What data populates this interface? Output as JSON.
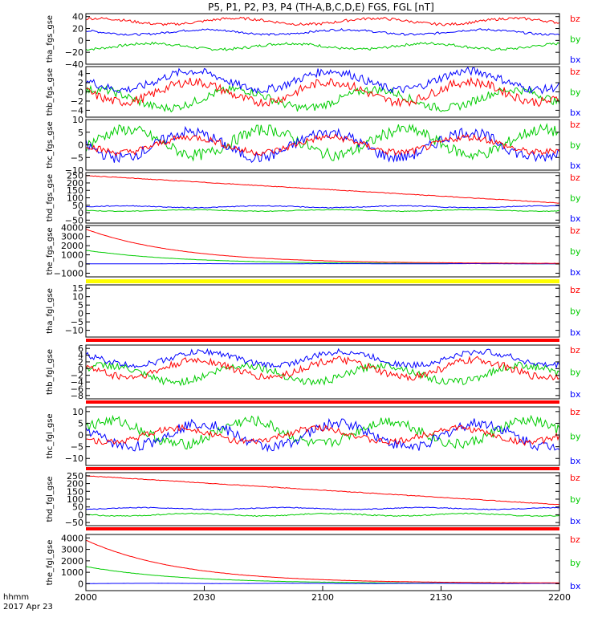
{
  "title": "P5, P1, P2, P3, P4 (TH-A,B,C,D,E) FGS, FGL [nT]",
  "colors": {
    "bz": "#ff0000",
    "by": "#00cc00",
    "bx": "#0000ff",
    "axis": "#000000",
    "flag_yellow": "#ffff00",
    "flag_red": "#ff0000"
  },
  "footer": {
    "xunit": "hhmm",
    "date": "2017 Apr 23"
  },
  "chart_data": {
    "type": "line",
    "x_ticks": [
      "2000",
      "2030",
      "2100",
      "2130",
      "2200"
    ],
    "xlim_minutes": [
      0,
      120
    ],
    "panels": [
      {
        "ylabel": "tha_fgs_gse",
        "ylim": [
          -40,
          45
        ],
        "yticks": [
          "40",
          "20",
          "0",
          "−20",
          "−40"
        ],
        "ytick_values": [
          40,
          20,
          0,
          -20,
          -40
        ],
        "legend": [
          "bz",
          "by",
          "bx"
        ],
        "series": {
          "bz": {
            "base": 32,
            "amp": 5
          },
          "by": {
            "base": -10,
            "amp": 5
          },
          "bx": {
            "base": 14,
            "amp": 4
          }
        }
      },
      {
        "ylabel": "thb_fgs_gse",
        "ylim": [
          -5.5,
          5.5
        ],
        "yticks": [
          "4",
          "2",
          "0",
          "−2",
          "−4"
        ],
        "ytick_values": [
          4,
          2,
          0,
          -2,
          -4
        ],
        "legend": [
          "bz",
          "by",
          "bx"
        ],
        "series": {
          "bz": {
            "base": 0,
            "amp": 2.2
          },
          "by": {
            "base": -1.5,
            "amp": 2
          },
          "bx": {
            "base": 2.5,
            "amp": 2
          }
        }
      },
      {
        "ylabel": "thc_fgs_gse",
        "ylim": [
          -10,
          10
        ],
        "yticks": [
          "10",
          "5",
          "0",
          "−5",
          "−10"
        ],
        "ytick_values": [
          10,
          5,
          0,
          -5,
          -10
        ],
        "legend": [
          "bz",
          "by",
          "bx"
        ],
        "series": {
          "bz": {
            "base": 0,
            "amp": 3
          },
          "by": {
            "base": 1,
            "amp": 5
          },
          "bx": {
            "base": 0,
            "amp": 5
          }
        }
      },
      {
        "ylabel": "thd_fgs_gse",
        "ylim": [
          -70,
          270
        ],
        "yticks": [
          "250",
          "200",
          "150",
          "100",
          "50",
          "0",
          "−50"
        ],
        "ytick_values": [
          250,
          200,
          150,
          100,
          50,
          0,
          -50
        ],
        "legend": [
          "bz",
          "by",
          "bx"
        ],
        "series": {
          "bz": {
            "start": 250,
            "end": 65,
            "mode": "decay"
          },
          "by": {
            "base": 15,
            "amp": 5
          },
          "bx": {
            "base": 40,
            "amp": 6
          }
        }
      },
      {
        "ylabel": "the_fgs_gse",
        "ylim": [
          -1400,
          4200
        ],
        "yticks": [
          "4000",
          "3000",
          "2000",
          "1000",
          "0",
          "−1000"
        ],
        "ytick_values": [
          4000,
          3000,
          2000,
          1000,
          0,
          -1000
        ],
        "legend": [
          "bz",
          "by",
          "bx"
        ],
        "series": {
          "bz": {
            "start": 3800,
            "end": 50,
            "mode": "exp"
          },
          "by": {
            "start": 1500,
            "end": 20,
            "mode": "exp"
          },
          "bx": {
            "base": 30,
            "amp": 10
          }
        }
      },
      {
        "ylabel": "tha_fgl_gse",
        "ylim": [
          -14,
          17
        ],
        "yticks": [
          "15",
          "10",
          "5",
          "0",
          "−5",
          "−10"
        ],
        "ytick_values": [
          15,
          10,
          5,
          0,
          -5,
          -10
        ],
        "legend": [
          "bz",
          "by",
          "bx"
        ],
        "flag_top": "yellow",
        "flag_bottom": "red",
        "empty": true
      },
      {
        "ylabel": "thb_fgl_gse",
        "ylim": [
          -9,
          7
        ],
        "yticks": [
          "6",
          "4",
          "2",
          "0",
          "−2",
          "−4",
          "−6",
          "−8"
        ],
        "ytick_values": [
          6,
          4,
          2,
          0,
          -2,
          -4,
          -6,
          -8
        ],
        "legend": [
          "bz",
          "by",
          "bx"
        ],
        "flag_bottom": "red",
        "series": {
          "bz": {
            "base": 0,
            "amp": 2.5
          },
          "by": {
            "base": -1.5,
            "amp": 2.5
          },
          "bx": {
            "base": 3,
            "amp": 2
          }
        }
      },
      {
        "ylabel": "thc_fgl_gse",
        "ylim": [
          -13,
          12
        ],
        "yticks": [
          "10",
          "5",
          "0",
          "−5",
          "−10"
        ],
        "ytick_values": [
          10,
          5,
          0,
          -5,
          -10
        ],
        "legend": [
          "bz",
          "by",
          "bx"
        ],
        "flag_bottom": "red",
        "series": {
          "bz": {
            "base": 0,
            "amp": 3
          },
          "by": {
            "base": 1,
            "amp": 5
          },
          "bx": {
            "base": 0,
            "amp": 5
          }
        }
      },
      {
        "ylabel": "thd_fgl_gse",
        "ylim": [
          -70,
          270
        ],
        "yticks": [
          "250",
          "200",
          "150",
          "100",
          "50",
          "0",
          "−50"
        ],
        "ytick_values": [
          250,
          200,
          150,
          100,
          50,
          0,
          -50
        ],
        "legend": [
          "bz",
          "by",
          "bx"
        ],
        "flag_bottom": "red",
        "series": {
          "bz": {
            "start": 250,
            "end": 65,
            "mode": "decay"
          },
          "by": {
            "base": 0,
            "amp": 8
          },
          "bx": {
            "base": 40,
            "amp": 6
          }
        }
      },
      {
        "ylabel": "the_fgl_gse",
        "ylim": [
          -600,
          4300
        ],
        "yticks": [
          "4000",
          "3000",
          "2000",
          "1000",
          "0"
        ],
        "ytick_values": [
          4000,
          3000,
          2000,
          1000,
          0
        ],
        "legend": [
          "bz",
          "by",
          "bx"
        ],
        "series": {
          "bz": {
            "start": 3800,
            "end": 50,
            "mode": "exp"
          },
          "by": {
            "start": 1500,
            "end": 20,
            "mode": "exp"
          },
          "bx": {
            "base": 30,
            "amp": 10
          }
        }
      }
    ]
  }
}
